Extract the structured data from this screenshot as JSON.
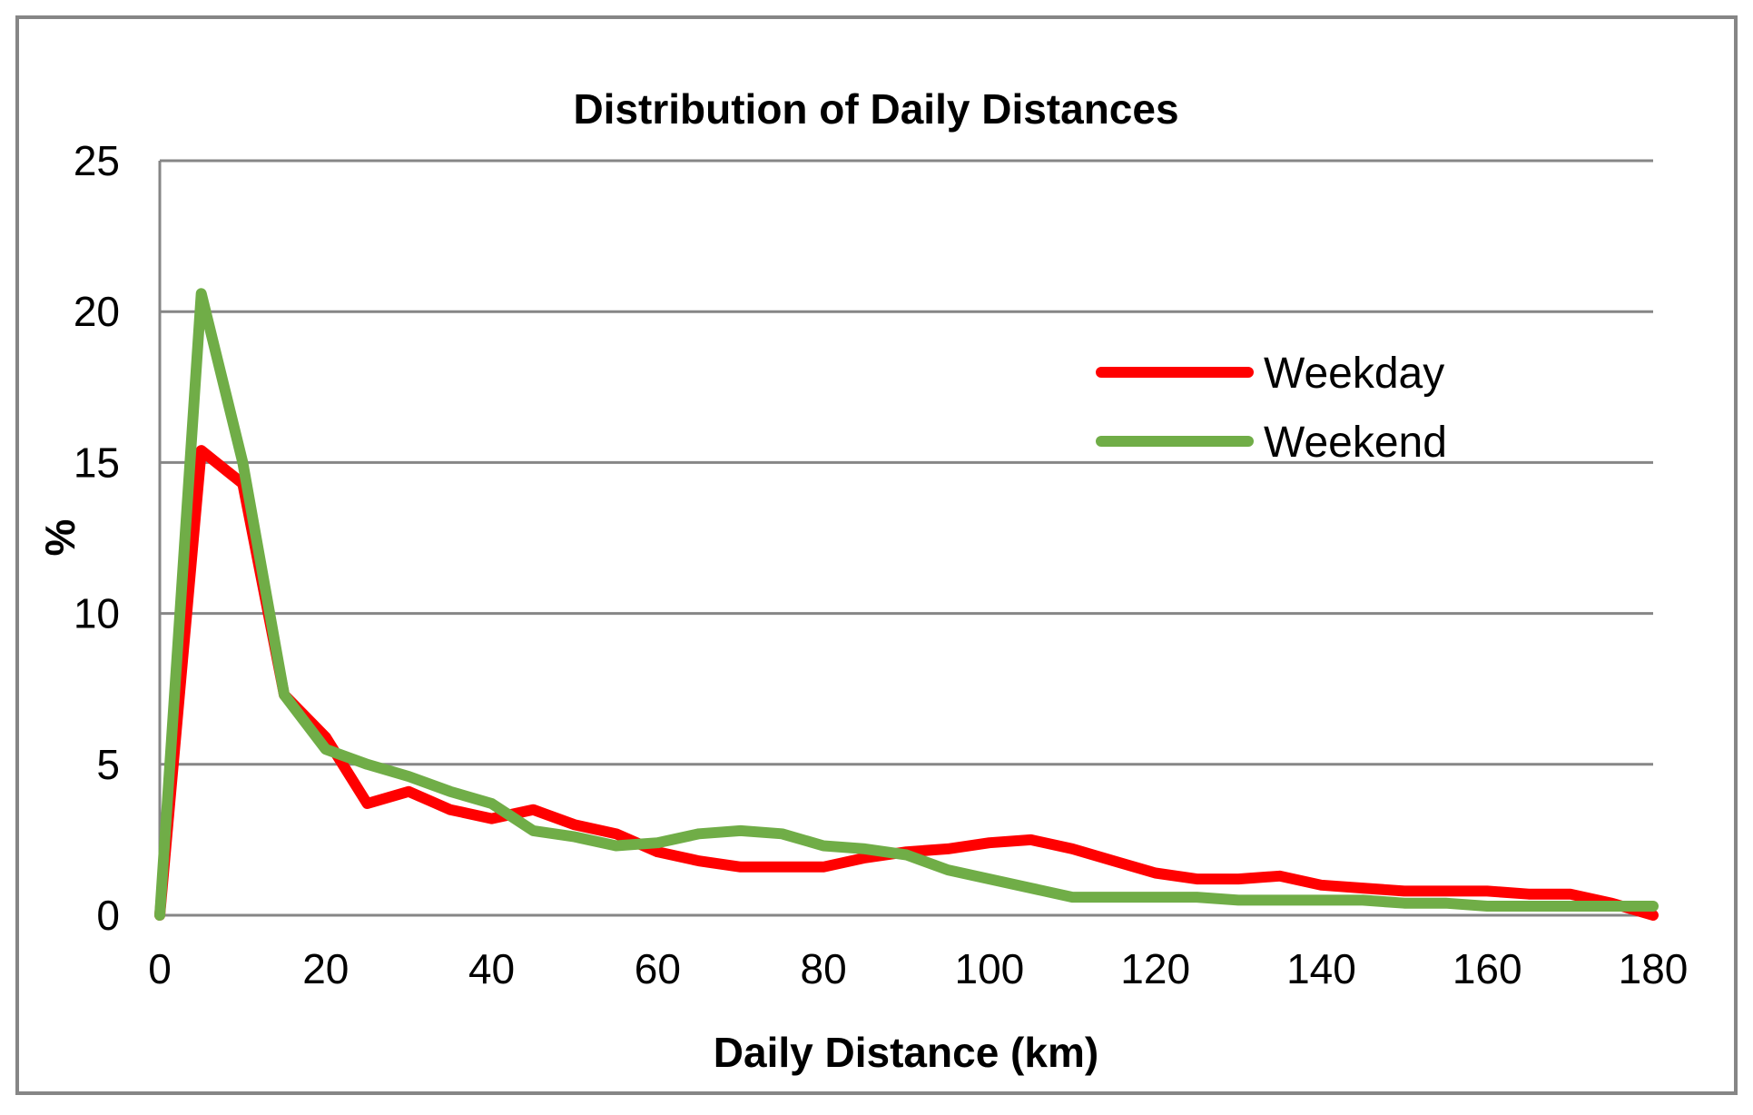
{
  "chart_data": {
    "type": "line",
    "title": "Distribution of Daily Distances",
    "xlabel": "Daily Distance (km)",
    "ylabel": "%",
    "xlim": [
      0,
      180
    ],
    "ylim": [
      0,
      25
    ],
    "xticks": [
      0,
      20,
      40,
      60,
      80,
      100,
      120,
      140,
      160,
      180
    ],
    "yticks": [
      0,
      5,
      10,
      15,
      20,
      25
    ],
    "grid": "horizontal",
    "legend_position": "right",
    "x": [
      0,
      5,
      10,
      15,
      20,
      25,
      30,
      35,
      40,
      45,
      50,
      55,
      60,
      65,
      70,
      75,
      80,
      85,
      90,
      95,
      100,
      105,
      110,
      115,
      120,
      125,
      130,
      135,
      140,
      145,
      150,
      155,
      160,
      165,
      170,
      175,
      180
    ],
    "series": [
      {
        "name": "Weekday",
        "color": "#ff0000",
        "values": [
          0,
          15.4,
          14.3,
          7.3,
          5.9,
          3.7,
          4.1,
          3.5,
          3.2,
          3.5,
          3.0,
          2.7,
          2.1,
          1.8,
          1.6,
          1.6,
          1.6,
          1.9,
          2.1,
          2.2,
          2.4,
          2.5,
          2.2,
          1.8,
          1.4,
          1.2,
          1.2,
          1.3,
          1.0,
          0.9,
          0.8,
          0.8,
          0.8,
          0.7,
          0.7,
          0.4,
          0.0
        ]
      },
      {
        "name": "Weekend",
        "color": "#70ad47",
        "values": [
          0,
          20.6,
          15.0,
          7.3,
          5.5,
          5.0,
          4.6,
          4.1,
          3.7,
          2.8,
          2.6,
          2.3,
          2.4,
          2.7,
          2.8,
          2.7,
          2.3,
          2.2,
          2.0,
          1.5,
          1.2,
          0.9,
          0.6,
          0.6,
          0.6,
          0.6,
          0.5,
          0.5,
          0.5,
          0.5,
          0.4,
          0.4,
          0.3,
          0.3,
          0.3,
          0.3,
          0.3
        ]
      }
    ]
  }
}
